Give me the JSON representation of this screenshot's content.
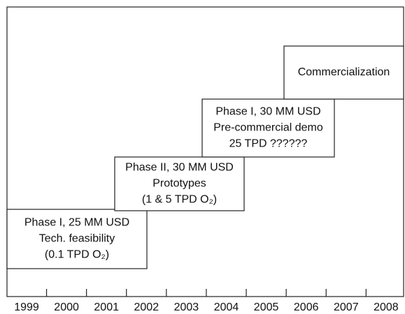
{
  "years": [
    "1999",
    "2000",
    "2001",
    "2002",
    "2003",
    "2004",
    "2005",
    "2006",
    "2007",
    "2008"
  ],
  "boxes": [
    {
      "lines": [
        "Phase I, 25 MM USD",
        "Tech. feasibility",
        "(0.1 TPD O₂)"
      ]
    },
    {
      "lines": [
        "Phase II, 30 MM USD",
        "Prototypes",
        "(1 & 5 TPD O₂)"
      ]
    },
    {
      "lines": [
        "Phase I, 30 MM USD",
        "Pre-commercial demo",
        "25 TPD ??????"
      ]
    },
    {
      "lines": [
        "Commercialization"
      ]
    }
  ]
}
